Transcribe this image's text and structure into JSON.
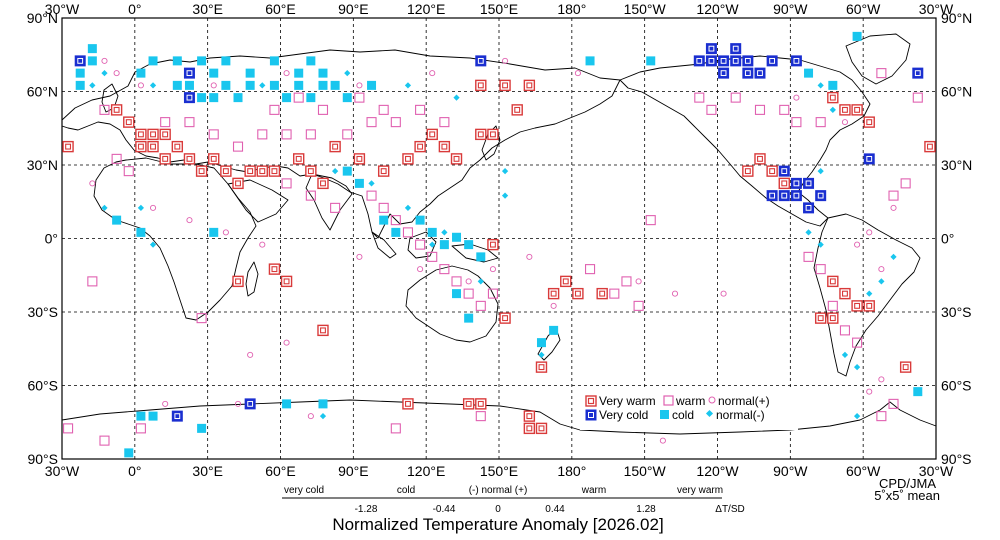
{
  "title": "Normalized Temperature Anomaly [2026.02]",
  "credit": {
    "agency": "CPD/JMA",
    "grid": "5˚x5˚ mean"
  },
  "axes": {
    "lon_ticks": [
      "30°W",
      "0°",
      "30°E",
      "60°E",
      "90°E",
      "120°E",
      "150°E",
      "180°",
      "150°W",
      "120°W",
      "90°W",
      "60°W",
      "30°W"
    ],
    "lat_ticks": [
      "90°N",
      "60°N",
      "30°N",
      "0°",
      "30°S",
      "60°S",
      "90°S"
    ]
  },
  "legend": {
    "very_warm": "Very warm",
    "warm": "warm",
    "normal_plus": "normal(+)",
    "very_cold": "Very cold",
    "cold": "cold",
    "normal_minus": "normal(-)"
  },
  "scale": {
    "categories": [
      "very cold",
      "cold",
      "(-) normal (+)",
      "warm",
      "very warm"
    ],
    "values": [
      "-1.28",
      "-0.44",
      "0",
      "0.44",
      "1.28"
    ],
    "unit": "ΔT/SD"
  },
  "colors": {
    "very_warm": "#d93a3a",
    "warm": "#e060b0",
    "very_cold": "#1a2fd0",
    "cold": "#19c6ee"
  },
  "chart_data": {
    "type": "scatter",
    "xlim": [
      -30,
      330
    ],
    "ylim": [
      -90,
      90
    ],
    "grid": true,
    "lon_convention": "0..360 east, values above 180 are west longitudes",
    "very_warm": [
      [
        -27.5,
        37.5
      ],
      [
        -7.5,
        52.5
      ],
      [
        -2.5,
        47.5
      ],
      [
        2.5,
        42.5
      ],
      [
        7.5,
        37.5
      ],
      [
        12.5,
        32.5
      ],
      [
        2.5,
        37.5
      ],
      [
        7.5,
        42.5
      ],
      [
        12.5,
        42.5
      ],
      [
        17.5,
        37.5
      ],
      [
        22.5,
        32.5
      ],
      [
        27.5,
        27.5
      ],
      [
        32.5,
        32.5
      ],
      [
        37.5,
        27.5
      ],
      [
        42.5,
        22.5
      ],
      [
        47.5,
        27.5
      ],
      [
        52.5,
        27.5
      ],
      [
        57.5,
        27.5
      ],
      [
        67.5,
        32.5
      ],
      [
        72.5,
        27.5
      ],
      [
        77.5,
        22.5
      ],
      [
        82.5,
        37.5
      ],
      [
        92.5,
        32.5
      ],
      [
        102.5,
        27.5
      ],
      [
        112.5,
        32.5
      ],
      [
        117.5,
        37.5
      ],
      [
        122.5,
        42.5
      ],
      [
        127.5,
        37.5
      ],
      [
        132.5,
        32.5
      ],
      [
        142.5,
        42.5
      ],
      [
        147.5,
        42.5
      ],
      [
        157.5,
        52.5
      ],
      [
        142.5,
        62.5
      ],
      [
        152.5,
        62.5
      ],
      [
        162.5,
        62.5
      ],
      [
        177.5,
        -17.5
      ],
      [
        182.5,
        -22.5
      ],
      [
        172.5,
        -22.5
      ],
      [
        147.5,
        -2.5
      ],
      [
        152.5,
        -32.5
      ],
      [
        167.5,
        -52.5
      ],
      [
        192.5,
        -22.5
      ],
      [
        257.5,
        32.5
      ],
      [
        262.5,
        27.5
      ],
      [
        267.5,
        22.5
      ],
      [
        252.5,
        27.5
      ],
      [
        287.5,
        57.5
      ],
      [
        292.5,
        52.5
      ],
      [
        302.5,
        47.5
      ],
      [
        297.5,
        52.5
      ],
      [
        287.5,
        -17.5
      ],
      [
        292.5,
        -22.5
      ],
      [
        297.5,
        -27.5
      ],
      [
        302.5,
        -27.5
      ],
      [
        282.5,
        -32.5
      ],
      [
        287.5,
        -32.5
      ],
      [
        317.5,
        -52.5
      ],
      [
        327.5,
        37.5
      ],
      [
        57.5,
        -12.5
      ],
      [
        62.5,
        -17.5
      ],
      [
        42.5,
        -17.5
      ],
      [
        77.5,
        -37.5
      ],
      [
        112.5,
        -67.5
      ],
      [
        137.5,
        -67.5
      ],
      [
        142.5,
        -67.5
      ],
      [
        162.5,
        -72.5
      ],
      [
        162.5,
        -77.5
      ],
      [
        167.5,
        -77.5
      ]
    ],
    "warm": [
      [
        -12.5,
        52.5
      ],
      [
        -7.5,
        32.5
      ],
      [
        -2.5,
        27.5
      ],
      [
        12.5,
        47.5
      ],
      [
        22.5,
        47.5
      ],
      [
        32.5,
        42.5
      ],
      [
        42.5,
        37.5
      ],
      [
        52.5,
        42.5
      ],
      [
        62.5,
        42.5
      ],
      [
        72.5,
        42.5
      ],
      [
        87.5,
        42.5
      ],
      [
        97.5,
        47.5
      ],
      [
        107.5,
        47.5
      ],
      [
        117.5,
        52.5
      ],
      [
        127.5,
        47.5
      ],
      [
        57.5,
        52.5
      ],
      [
        67.5,
        57.5
      ],
      [
        77.5,
        52.5
      ],
      [
        92.5,
        57.5
      ],
      [
        102.5,
        52.5
      ],
      [
        62.5,
        22.5
      ],
      [
        72.5,
        17.5
      ],
      [
        82.5,
        12.5
      ],
      [
        97.5,
        17.5
      ],
      [
        102.5,
        12.5
      ],
      [
        107.5,
        7.5
      ],
      [
        112.5,
        2.5
      ],
      [
        117.5,
        -2.5
      ],
      [
        122.5,
        -7.5
      ],
      [
        127.5,
        -12.5
      ],
      [
        132.5,
        -17.5
      ],
      [
        137.5,
        -22.5
      ],
      [
        142.5,
        -27.5
      ],
      [
        147.5,
        -22.5
      ],
      [
        187.5,
        -12.5
      ],
      [
        197.5,
        -22.5
      ],
      [
        202.5,
        -17.5
      ],
      [
        207.5,
        -27.5
      ],
      [
        212.5,
        7.5
      ],
      [
        232.5,
        57.5
      ],
      [
        237.5,
        52.5
      ],
      [
        247.5,
        57.5
      ],
      [
        257.5,
        52.5
      ],
      [
        267.5,
        52.5
      ],
      [
        272.5,
        47.5
      ],
      [
        282.5,
        47.5
      ],
      [
        307.5,
        67.5
      ],
      [
        322.5,
        57.5
      ],
      [
        317.5,
        22.5
      ],
      [
        312.5,
        17.5
      ],
      [
        277.5,
        -7.5
      ],
      [
        282.5,
        -12.5
      ],
      [
        287.5,
        -27.5
      ],
      [
        292.5,
        -37.5
      ],
      [
        297.5,
        -42.5
      ],
      [
        -17.5,
        -17.5
      ],
      [
        27.5,
        -32.5
      ],
      [
        -27.5,
        -77.5
      ],
      [
        -12.5,
        -82.5
      ],
      [
        2.5,
        -77.5
      ],
      [
        107.5,
        -77.5
      ],
      [
        142.5,
        -72.5
      ],
      [
        307.5,
        -72.5
      ],
      [
        312.5,
        -67.5
      ]
    ],
    "normal_plus": [
      [
        -12.5,
        72.5
      ],
      [
        -7.5,
        67.5
      ],
      [
        2.5,
        62.5
      ],
      [
        32.5,
        62.5
      ],
      [
        62.5,
        67.5
      ],
      [
        92.5,
        62.5
      ],
      [
        122.5,
        67.5
      ],
      [
        152.5,
        72.5
      ],
      [
        182.5,
        67.5
      ],
      [
        -17.5,
        22.5
      ],
      [
        7.5,
        12.5
      ],
      [
        22.5,
        7.5
      ],
      [
        37.5,
        2.5
      ],
      [
        52.5,
        -2.5
      ],
      [
        92.5,
        -7.5
      ],
      [
        117.5,
        -12.5
      ],
      [
        137.5,
        -17.5
      ],
      [
        147.5,
        -12.5
      ],
      [
        162.5,
        -7.5
      ],
      [
        172.5,
        -27.5
      ],
      [
        207.5,
        -17.5
      ],
      [
        222.5,
        -22.5
      ],
      [
        242.5,
        -22.5
      ],
      [
        272.5,
        57.5
      ],
      [
        292.5,
        47.5
      ],
      [
        312.5,
        12.5
      ],
      [
        302.5,
        2.5
      ],
      [
        307.5,
        -12.5
      ],
      [
        297.5,
        -2.5
      ],
      [
        47.5,
        -47.5
      ],
      [
        62.5,
        -42.5
      ],
      [
        217.5,
        -82.5
      ],
      [
        302.5,
        -62.5
      ],
      [
        307.5,
        -57.5
      ],
      [
        12.5,
        -67.5
      ],
      [
        42.5,
        -67.5
      ],
      [
        72.5,
        -72.5
      ]
    ],
    "very_cold": [
      [
        -22.5,
        72.5
      ],
      [
        22.5,
        67.5
      ],
      [
        22.5,
        57.5
      ],
      [
        142.5,
        72.5
      ],
      [
        232.5,
        72.5
      ],
      [
        237.5,
        72.5
      ],
      [
        242.5,
        72.5
      ],
      [
        247.5,
        72.5
      ],
      [
        252.5,
        72.5
      ],
      [
        237.5,
        77.5
      ],
      [
        247.5,
        77.5
      ],
      [
        242.5,
        67.5
      ],
      [
        252.5,
        67.5
      ],
      [
        257.5,
        67.5
      ],
      [
        262.5,
        72.5
      ],
      [
        272.5,
        72.5
      ],
      [
        267.5,
        27.5
      ],
      [
        272.5,
        22.5
      ],
      [
        277.5,
        22.5
      ],
      [
        262.5,
        17.5
      ],
      [
        267.5,
        17.5
      ],
      [
        272.5,
        17.5
      ],
      [
        277.5,
        12.5
      ],
      [
        282.5,
        17.5
      ],
      [
        302.5,
        32.5
      ],
      [
        322.5,
        67.5
      ],
      [
        17.5,
        -72.5
      ],
      [
        47.5,
        -67.5
      ]
    ],
    "cold": [
      [
        -22.5,
        67.5
      ],
      [
        -17.5,
        72.5
      ],
      [
        -17.5,
        77.5
      ],
      [
        -22.5,
        62.5
      ],
      [
        2.5,
        67.5
      ],
      [
        7.5,
        72.5
      ],
      [
        17.5,
        72.5
      ],
      [
        27.5,
        72.5
      ],
      [
        32.5,
        67.5
      ],
      [
        37.5,
        72.5
      ],
      [
        47.5,
        67.5
      ],
      [
        57.5,
        72.5
      ],
      [
        67.5,
        67.5
      ],
      [
        72.5,
        72.5
      ],
      [
        77.5,
        67.5
      ],
      [
        82.5,
        62.5
      ],
      [
        17.5,
        62.5
      ],
      [
        22.5,
        62.5
      ],
      [
        27.5,
        57.5
      ],
      [
        32.5,
        57.5
      ],
      [
        37.5,
        62.5
      ],
      [
        42.5,
        57.5
      ],
      [
        47.5,
        62.5
      ],
      [
        57.5,
        62.5
      ],
      [
        62.5,
        57.5
      ],
      [
        67.5,
        62.5
      ],
      [
        72.5,
        57.5
      ],
      [
        77.5,
        62.5
      ],
      [
        87.5,
        57.5
      ],
      [
        97.5,
        62.5
      ],
      [
        87.5,
        27.5
      ],
      [
        92.5,
        22.5
      ],
      [
        102.5,
        7.5
      ],
      [
        107.5,
        2.5
      ],
      [
        117.5,
        7.5
      ],
      [
        122.5,
        2.5
      ],
      [
        127.5,
        -2.5
      ],
      [
        132.5,
        0.5
      ],
      [
        137.5,
        -2.5
      ],
      [
        142.5,
        -7.5
      ],
      [
        132.5,
        -22.5
      ],
      [
        137.5,
        -32.5
      ],
      [
        167.5,
        -42.5
      ],
      [
        172.5,
        -37.5
      ],
      [
        -7.5,
        7.5
      ],
      [
        2.5,
        2.5
      ],
      [
        32.5,
        2.5
      ],
      [
        62.5,
        -67.5
      ],
      [
        27.5,
        -77.5
      ],
      [
        2.5,
        -72.5
      ],
      [
        7.5,
        -72.5
      ],
      [
        77.5,
        -67.5
      ],
      [
        322.5,
        -62.5
      ],
      [
        -2.5,
        -87.5
      ],
      [
        187.5,
        72.5
      ],
      [
        297.5,
        82.5
      ],
      [
        287.5,
        62.5
      ],
      [
        277.5,
        67.5
      ],
      [
        212.5,
        72.5
      ]
    ],
    "normal_minus": [
      [
        -17.5,
        62.5
      ],
      [
        7.5,
        62.5
      ],
      [
        52.5,
        62.5
      ],
      [
        87.5,
        67.5
      ],
      [
        112.5,
        62.5
      ],
      [
        132.5,
        57.5
      ],
      [
        162.5,
        62.5
      ],
      [
        -12.5,
        67.5
      ],
      [
        82.5,
        27.5
      ],
      [
        97.5,
        22.5
      ],
      [
        112.5,
        12.5
      ],
      [
        122.5,
        -2.5
      ],
      [
        127.5,
        2.5
      ],
      [
        142.5,
        -17.5
      ],
      [
        167.5,
        -47.5
      ],
      [
        152.5,
        17.5
      ],
      [
        152.5,
        27.5
      ],
      [
        282.5,
        62.5
      ],
      [
        287.5,
        52.5
      ],
      [
        282.5,
        27.5
      ],
      [
        277.5,
        2.5
      ],
      [
        282.5,
        -2.5
      ],
      [
        307.5,
        -17.5
      ],
      [
        312.5,
        -7.5
      ],
      [
        302.5,
        -22.5
      ],
      [
        292.5,
        -47.5
      ],
      [
        297.5,
        -52.5
      ],
      [
        2.5,
        12.5
      ],
      [
        -12.5,
        12.5
      ],
      [
        7.5,
        -2.5
      ],
      [
        77.5,
        -72.5
      ],
      [
        297.5,
        -72.5
      ]
    ]
  }
}
